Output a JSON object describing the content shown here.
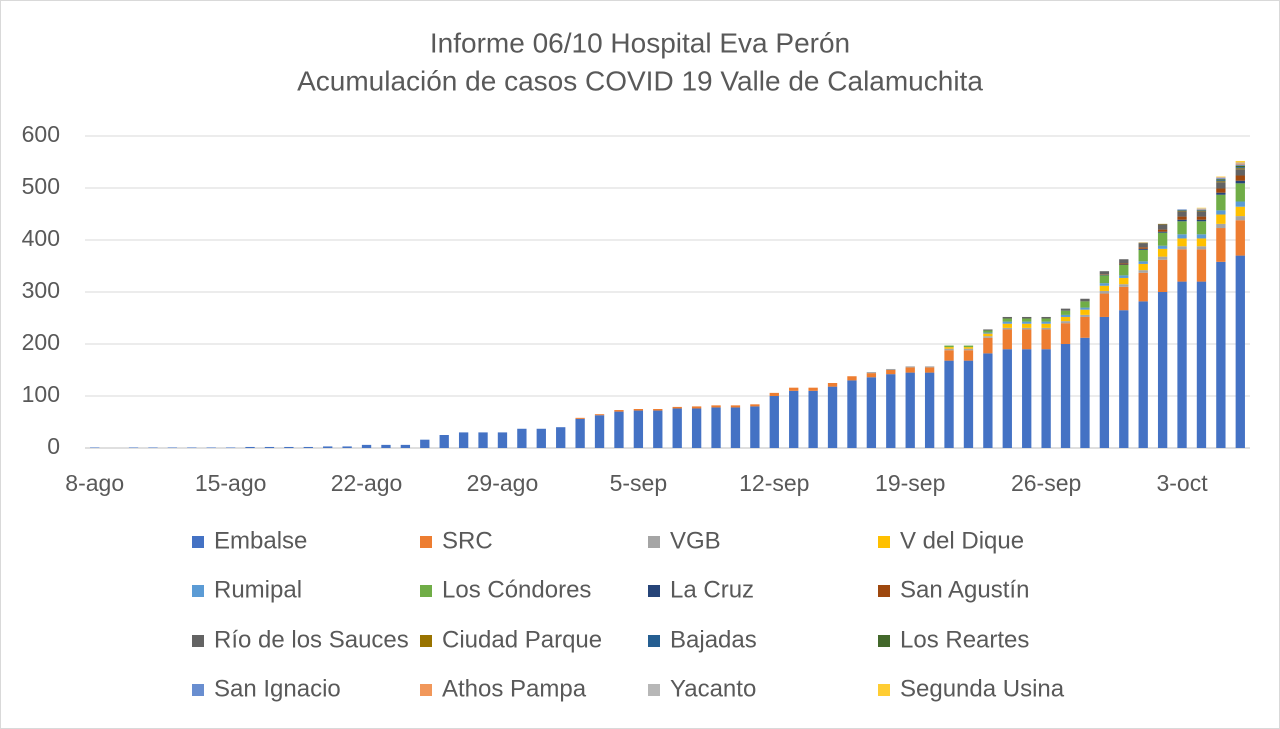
{
  "chart_data": {
    "type": "bar",
    "stacked": true,
    "title": [
      "Informe 06/10 Hospital Eva Perón",
      "Acumulación de casos COVID 19 Valle de Calamuchita"
    ],
    "categories": [
      "8-ago",
      null,
      null,
      null,
      null,
      null,
      null,
      "15-ago",
      null,
      null,
      null,
      null,
      null,
      null,
      "22-ago",
      null,
      null,
      null,
      null,
      null,
      null,
      "29-ago",
      null,
      null,
      null,
      null,
      null,
      null,
      "5-sep",
      null,
      null,
      null,
      null,
      null,
      null,
      "12-sep",
      null,
      null,
      null,
      null,
      null,
      null,
      "19-sep",
      null,
      null,
      null,
      null,
      null,
      null,
      "26-sep",
      null,
      null,
      null,
      null,
      null,
      null,
      "3-oct",
      null,
      null,
      null
    ],
    "ylim": [
      0,
      600
    ],
    "yticks": [
      0,
      100,
      200,
      300,
      400,
      500,
      600
    ],
    "grid": true,
    "legend": "bottom",
    "series": [
      {
        "name": "Embalse",
        "color": "#4472c4",
        "values": [
          1,
          0,
          1,
          1,
          1,
          1,
          1,
          1,
          2,
          2,
          2,
          2,
          3,
          3,
          6,
          6,
          6,
          16,
          25,
          30,
          30,
          30,
          37,
          37,
          40,
          56,
          63,
          70,
          72,
          72,
          76,
          76,
          78,
          78,
          80,
          100,
          110,
          110,
          118,
          130,
          136,
          142,
          145,
          145,
          168,
          168,
          182,
          190,
          190,
          190,
          200,
          212,
          252,
          265,
          282,
          300,
          320,
          320,
          358,
          370
        ]
      },
      {
        "name": "SRC",
        "color": "#ed7d31",
        "values": [
          0,
          0,
          0,
          0,
          0,
          0,
          0,
          0,
          0,
          0,
          0,
          0,
          0,
          0,
          0,
          0,
          0,
          0,
          0,
          0,
          0,
          0,
          0,
          0,
          0,
          2,
          2,
          3,
          3,
          3,
          3,
          4,
          4,
          4,
          4,
          6,
          6,
          6,
          7,
          8,
          8,
          8,
          10,
          10,
          20,
          20,
          30,
          38,
          38,
          38,
          40,
          40,
          45,
          45,
          55,
          62,
          62,
          62,
          65,
          68
        ]
      },
      {
        "name": "VGB",
        "color": "#a5a5a5",
        "values": [
          0,
          0,
          0,
          0,
          0,
          0,
          0,
          0,
          0,
          0,
          0,
          0,
          0,
          0,
          0,
          0,
          0,
          0,
          0,
          0,
          0,
          0,
          0,
          0,
          0,
          0,
          0,
          0,
          0,
          0,
          0,
          0,
          0,
          0,
          0,
          0,
          0,
          0,
          0,
          0,
          2,
          2,
          2,
          2,
          3,
          3,
          3,
          3,
          3,
          3,
          4,
          4,
          5,
          5,
          5,
          6,
          6,
          6,
          8,
          8
        ]
      },
      {
        "name": "V del Dique",
        "color": "#ffc000",
        "values": [
          0,
          0,
          0,
          0,
          0,
          0,
          0,
          0,
          0,
          0,
          0,
          0,
          0,
          0,
          0,
          0,
          0,
          0,
          0,
          0,
          0,
          0,
          0,
          0,
          0,
          0,
          0,
          0,
          0,
          0,
          0,
          0,
          0,
          0,
          0,
          0,
          0,
          0,
          0,
          0,
          0,
          0,
          0,
          0,
          3,
          3,
          5,
          8,
          8,
          8,
          8,
          10,
          10,
          12,
          12,
          15,
          15,
          15,
          18,
          18
        ]
      },
      {
        "name": "Rumipal",
        "color": "#5b9bd5",
        "values": [
          0,
          0,
          0,
          0,
          0,
          0,
          0,
          0,
          0,
          0,
          0,
          0,
          0,
          0,
          0,
          0,
          0,
          0,
          0,
          0,
          0,
          0,
          0,
          0,
          0,
          0,
          0,
          0,
          0,
          0,
          0,
          0,
          0,
          0,
          0,
          0,
          0,
          0,
          0,
          0,
          0,
          0,
          0,
          0,
          0,
          0,
          2,
          4,
          4,
          4,
          4,
          4,
          5,
          5,
          5,
          6,
          8,
          8,
          8,
          10
        ]
      },
      {
        "name": "Los Cóndores",
        "color": "#70ad47",
        "values": [
          0,
          0,
          0,
          0,
          0,
          0,
          0,
          0,
          0,
          0,
          0,
          0,
          0,
          0,
          0,
          0,
          0,
          0,
          0,
          0,
          0,
          0,
          0,
          0,
          0,
          0,
          0,
          0,
          0,
          0,
          0,
          0,
          0,
          0,
          0,
          0,
          0,
          0,
          0,
          0,
          0,
          0,
          0,
          0,
          3,
          3,
          4,
          6,
          6,
          6,
          8,
          12,
          15,
          20,
          22,
          25,
          25,
          25,
          30,
          35
        ]
      },
      {
        "name": "La Cruz",
        "color": "#264478",
        "values": [
          0,
          0,
          0,
          0,
          0,
          0,
          0,
          0,
          0,
          0,
          0,
          0,
          0,
          0,
          0,
          0,
          0,
          0,
          0,
          0,
          0,
          0,
          0,
          0,
          0,
          0,
          0,
          0,
          0,
          0,
          0,
          0,
          0,
          0,
          0,
          0,
          0,
          0,
          0,
          0,
          0,
          0,
          0,
          0,
          0,
          0,
          0,
          0,
          0,
          0,
          0,
          0,
          1,
          1,
          2,
          2,
          3,
          3,
          4,
          5
        ]
      },
      {
        "name": "San Agustín",
        "color": "#9e480e",
        "values": [
          0,
          0,
          0,
          0,
          0,
          0,
          0,
          0,
          0,
          0,
          0,
          0,
          0,
          0,
          0,
          0,
          0,
          0,
          0,
          0,
          0,
          0,
          0,
          0,
          0,
          0,
          0,
          0,
          0,
          0,
          0,
          0,
          0,
          0,
          0,
          0,
          0,
          0,
          0,
          0,
          0,
          0,
          0,
          0,
          0,
          0,
          0,
          0,
          0,
          0,
          0,
          0,
          1,
          2,
          3,
          4,
          6,
          6,
          8,
          10
        ]
      },
      {
        "name": "Río de los Sauces",
        "color": "#636363",
        "values": [
          0,
          0,
          0,
          0,
          0,
          0,
          0,
          0,
          0,
          0,
          0,
          0,
          0,
          0,
          0,
          0,
          0,
          0,
          0,
          0,
          0,
          0,
          0,
          0,
          0,
          0,
          0,
          0,
          0,
          0,
          0,
          0,
          0,
          0,
          0,
          0,
          0,
          0,
          0,
          0,
          0,
          0,
          0,
          0,
          0,
          0,
          2,
          3,
          3,
          3,
          4,
          5,
          6,
          8,
          8,
          10,
          10,
          10,
          12,
          12
        ]
      },
      {
        "name": "Ciudad Parque",
        "color": "#997300",
        "values": [
          0,
          0,
          0,
          0,
          0,
          0,
          0,
          0,
          0,
          0,
          0,
          0,
          0,
          0,
          0,
          0,
          0,
          0,
          0,
          0,
          0,
          0,
          0,
          0,
          0,
          0,
          0,
          0,
          0,
          0,
          0,
          0,
          0,
          0,
          0,
          0,
          0,
          0,
          0,
          0,
          0,
          0,
          0,
          0,
          0,
          0,
          0,
          0,
          0,
          0,
          0,
          0,
          0,
          0,
          1,
          1,
          1,
          1,
          2,
          2
        ]
      },
      {
        "name": "Bajadas",
        "color": "#255e91",
        "values": [
          0,
          0,
          0,
          0,
          0,
          0,
          0,
          0,
          0,
          0,
          0,
          0,
          0,
          0,
          0,
          0,
          0,
          0,
          0,
          0,
          0,
          0,
          0,
          0,
          0,
          0,
          0,
          0,
          0,
          0,
          0,
          0,
          0,
          0,
          0,
          0,
          0,
          0,
          0,
          0,
          0,
          0,
          0,
          0,
          0,
          0,
          0,
          0,
          0,
          0,
          0,
          0,
          0,
          0,
          0,
          0,
          1,
          1,
          2,
          2
        ]
      },
      {
        "name": "Los Reartes",
        "color": "#43682b",
        "values": [
          0,
          0,
          0,
          0,
          0,
          0,
          0,
          0,
          0,
          0,
          0,
          0,
          0,
          0,
          0,
          0,
          0,
          0,
          0,
          0,
          0,
          0,
          0,
          0,
          0,
          0,
          0,
          0,
          0,
          0,
          0,
          0,
          0,
          0,
          0,
          0,
          0,
          0,
          0,
          0,
          0,
          0,
          0,
          0,
          0,
          0,
          0,
          0,
          0,
          0,
          0,
          0,
          0,
          0,
          0,
          0,
          1,
          1,
          2,
          3
        ]
      },
      {
        "name": "San Ignacio",
        "color": "#698ed0",
        "values": [
          0,
          0,
          0,
          0,
          0,
          0,
          0,
          0,
          0,
          0,
          0,
          0,
          0,
          0,
          0,
          0,
          0,
          0,
          0,
          0,
          0,
          0,
          0,
          0,
          0,
          0,
          0,
          0,
          0,
          0,
          0,
          0,
          0,
          0,
          0,
          0,
          0,
          0,
          0,
          0,
          0,
          0,
          0,
          0,
          0,
          0,
          0,
          0,
          0,
          0,
          0,
          0,
          0,
          0,
          0,
          0,
          1,
          1,
          2,
          2
        ]
      },
      {
        "name": "Athos Pampa",
        "color": "#f1975a",
        "values": [
          0,
          0,
          0,
          0,
          0,
          0,
          0,
          0,
          0,
          0,
          0,
          0,
          0,
          0,
          0,
          0,
          0,
          0,
          0,
          0,
          0,
          0,
          0,
          0,
          0,
          0,
          0,
          0,
          0,
          0,
          0,
          0,
          0,
          0,
          0,
          0,
          0,
          0,
          0,
          0,
          0,
          0,
          0,
          0,
          0,
          0,
          0,
          0,
          0,
          0,
          0,
          0,
          0,
          0,
          0,
          0,
          0,
          1,
          1,
          2
        ]
      },
      {
        "name": "Yacanto",
        "color": "#b7b7b7",
        "values": [
          0,
          0,
          0,
          0,
          0,
          0,
          0,
          0,
          0,
          0,
          0,
          0,
          0,
          0,
          0,
          0,
          0,
          0,
          0,
          0,
          0,
          0,
          0,
          0,
          0,
          0,
          0,
          0,
          0,
          0,
          0,
          0,
          0,
          0,
          0,
          0,
          0,
          0,
          0,
          0,
          0,
          0,
          0,
          0,
          0,
          0,
          0,
          0,
          0,
          0,
          0,
          0,
          0,
          0,
          0,
          0,
          0,
          1,
          1,
          2
        ]
      },
      {
        "name": "Segunda Usina",
        "color": "#ffcd33",
        "values": [
          0,
          0,
          0,
          0,
          0,
          0,
          0,
          0,
          0,
          0,
          0,
          0,
          0,
          0,
          0,
          0,
          0,
          0,
          0,
          0,
          0,
          0,
          0,
          0,
          0,
          0,
          0,
          0,
          0,
          0,
          0,
          0,
          0,
          0,
          0,
          0,
          0,
          0,
          0,
          0,
          0,
          0,
          0,
          0,
          0,
          0,
          0,
          0,
          0,
          0,
          0,
          0,
          0,
          0,
          0,
          0,
          0,
          1,
          1,
          3
        ]
      }
    ]
  }
}
